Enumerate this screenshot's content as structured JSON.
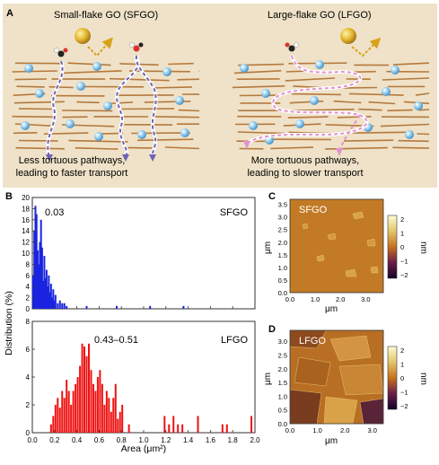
{
  "panel_a": {
    "letter": "A",
    "left_title": "Small-flake GO (SFGO)",
    "right_title": "Large-flake GO (LFGO)",
    "left_caption_1": "Less tortuous pathways,",
    "left_caption_2": "leading to faster transport",
    "right_caption_1": "More tortuous pathways,",
    "right_caption_2": "leading to slower transport",
    "colors": {
      "background": "#efe2c8",
      "flake": "#b5793d",
      "ion": "#8ecbef",
      "path_left": "#6f63b4",
      "path_right": "#e293cf",
      "ball": "#e2b72f"
    }
  },
  "panel_b": {
    "letter": "B",
    "top_label": "SFGO",
    "top_value": "0.03",
    "bottom_label": "LFGO",
    "bottom_value": "0.43–0.51",
    "ylabel": "Distribution (%)",
    "xlabel": "Area (μm²)",
    "top_yticks": [
      "20",
      "18",
      "16",
      "14",
      "12",
      "10",
      "8",
      "6",
      "4",
      "2",
      "0"
    ],
    "bottom_yticks": [
      "8",
      "6",
      "4",
      "2",
      "0"
    ],
    "xticks": [
      "0.0",
      "0.2",
      "0.4",
      "0.6",
      "0.8",
      "1.0",
      "1.2",
      "1.4",
      "1.6",
      "1.8",
      "2.0"
    ]
  },
  "panel_c": {
    "letter": "C",
    "label": "SFGO",
    "yticks": [
      "3.5",
      "3.0",
      "2.5",
      "2.0",
      "1.5",
      "1.0",
      "0.5",
      "0.0"
    ],
    "xticks": [
      "0.0",
      "1.0",
      "2.0",
      "3.0"
    ],
    "axis_unit": "μm",
    "cb_ticks": [
      "2",
      "1",
      "0",
      "−1",
      "−2"
    ],
    "cb_unit": "nm"
  },
  "panel_d": {
    "letter": "D",
    "label": "LFGO",
    "yticks": [
      "3.0",
      "2.5",
      "2.0",
      "1.5",
      "1.0",
      "0.5",
      "0.0"
    ],
    "xticks": [
      "0.0",
      "1.0",
      "2.0",
      "3.0"
    ],
    "axis_unit": "μm",
    "cb_ticks": [
      "2",
      "1",
      "0",
      "−1",
      "−2"
    ],
    "cb_unit": "nm"
  },
  "chart_data": [
    {
      "type": "bar",
      "title": "SFGO",
      "xlabel": "Area (μm²)",
      "ylabel": "Distribution (%)",
      "xlim": [
        0,
        2.0
      ],
      "ylim": [
        0,
        20
      ],
      "bin_width": 0.01,
      "x": [
        0.0,
        0.01,
        0.02,
        0.03,
        0.04,
        0.05,
        0.06,
        0.07,
        0.08,
        0.09,
        0.1,
        0.11,
        0.12,
        0.13,
        0.14,
        0.15,
        0.16,
        0.17,
        0.18,
        0.19,
        0.2,
        0.22,
        0.24,
        0.26,
        0.28,
        0.3,
        0.48,
        0.75,
        1.05,
        1.35
      ],
      "values": [
        6,
        14,
        18.5,
        17,
        10.5,
        8,
        12,
        16,
        11,
        5,
        9.5,
        5.5,
        7,
        4,
        6,
        3,
        4.5,
        2,
        3.5,
        1.5,
        2.5,
        1,
        1.5,
        1,
        1,
        0.5,
        0.5,
        0.5,
        0.5,
        0.5
      ]
    },
    {
      "type": "bar",
      "title": "LFGO",
      "xlabel": "Area (μm²)",
      "ylabel": "Distribution (%)",
      "xlim": [
        0,
        2.0
      ],
      "ylim": [
        0,
        8
      ],
      "bin_width": 0.01,
      "x": [
        0.16,
        0.18,
        0.2,
        0.22,
        0.24,
        0.26,
        0.28,
        0.3,
        0.32,
        0.34,
        0.36,
        0.38,
        0.4,
        0.42,
        0.44,
        0.46,
        0.48,
        0.5,
        0.52,
        0.54,
        0.56,
        0.58,
        0.6,
        0.62,
        0.64,
        0.66,
        0.68,
        0.7,
        0.72,
        0.74,
        0.76,
        0.78,
        0.8,
        0.86,
        1.18,
        1.22,
        1.26,
        1.3,
        1.34,
        1.48,
        1.7,
        1.74,
        1.96
      ],
      "values": [
        0.6,
        1.2,
        2,
        2.5,
        1.8,
        3,
        2.5,
        3.8,
        3,
        2,
        3,
        3.5,
        4,
        4.8,
        6.4,
        6.2,
        5.5,
        6.4,
        4.5,
        3.5,
        3,
        4,
        4.5,
        3.5,
        2,
        3,
        2.5,
        1.5,
        2.5,
        3.5,
        1,
        1.5,
        2,
        0.6,
        1.2,
        0.6,
        1.2,
        0.6,
        0.6,
        1.2,
        0.6,
        0.6,
        1.2
      ]
    }
  ]
}
